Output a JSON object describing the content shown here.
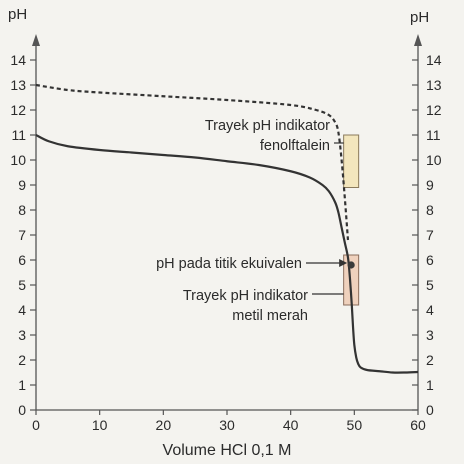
{
  "chart_data": {
    "type": "line",
    "xlabel": "Volume HCl 0,1 M",
    "ylabel": "pH",
    "ylabel_right": "pH",
    "xlim": [
      0,
      60
    ],
    "ylim": [
      0,
      14
    ],
    "xticks": [
      "0",
      "10",
      "20",
      "30",
      "40",
      "50",
      "60"
    ],
    "yticks": [
      "0",
      "1",
      "2",
      "3",
      "4",
      "5",
      "6",
      "7",
      "8",
      "9",
      "10",
      "11",
      "12",
      "13",
      "14"
    ],
    "grid": false,
    "series": [
      {
        "style": "solid",
        "color": "#333333",
        "x": [
          0,
          2,
          5,
          10,
          15,
          20,
          25,
          30,
          35,
          40,
          43,
          45,
          46,
          47,
          47.5,
          48,
          48.5,
          49,
          49.3,
          49.6,
          49.8,
          50,
          50.3,
          50.6,
          51,
          52,
          54,
          56,
          58,
          60
        ],
        "y": [
          11.0,
          10.75,
          10.55,
          10.4,
          10.3,
          10.2,
          10.1,
          9.95,
          9.8,
          9.55,
          9.3,
          9.0,
          8.75,
          8.3,
          7.9,
          7.3,
          6.7,
          6.1,
          5.3,
          4.2,
          3.3,
          2.6,
          2.1,
          1.85,
          1.7,
          1.6,
          1.55,
          1.5,
          1.5,
          1.52
        ]
      },
      {
        "style": "dashed",
        "color": "#333333",
        "x": [
          0,
          5,
          10,
          20,
          30,
          40,
          44,
          46,
          47,
          47.5,
          48,
          48.5,
          49
        ],
        "y": [
          13.0,
          12.8,
          12.7,
          12.55,
          12.4,
          12.2,
          12.0,
          11.8,
          11.5,
          11.1,
          10.0,
          8.5,
          6.8
        ]
      }
    ],
    "indicator_ranges": [
      {
        "name": "fenolftalein",
        "x": 49.5,
        "y_range": [
          8.9,
          11.0
        ],
        "color": "#f3e6bd"
      },
      {
        "name": "metil merah",
        "x": 49.5,
        "y_range": [
          4.2,
          6.2
        ],
        "color": "#efd1bd"
      }
    ],
    "equivalence_point": {
      "x": 49.5,
      "y": 5.8
    },
    "annotations": {
      "fenolftalein_line1": "Trayek pH indikator",
      "fenolftalein_line2": "fenolftalein",
      "equivalence": "pH pada titik ekuivalen",
      "metil_line1": "Trayek pH indikator",
      "metil_line2": "metil merah"
    }
  }
}
